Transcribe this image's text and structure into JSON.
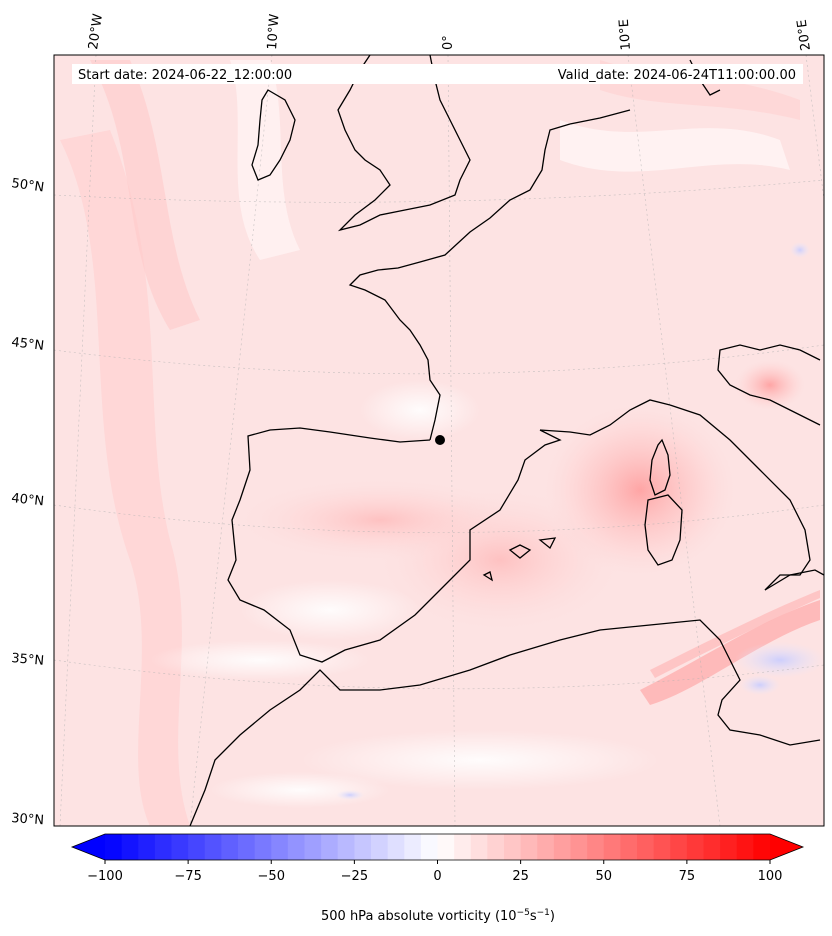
{
  "header": {
    "start_date": "Start date: 2024-06-22_12:00:00",
    "valid_date": "Valid_date: 2024-06-24T11:00:00.00"
  },
  "longitude_labels": [
    "20°W",
    "10°W",
    "0°",
    "10°E",
    "20°E"
  ],
  "latitude_labels": [
    "50°N",
    "45°N",
    "40°N",
    "35°N",
    "30°N"
  ],
  "colorbar": {
    "ticks": [
      "−100",
      "−75",
      "−50",
      "−25",
      "0",
      "25",
      "50",
      "75",
      "100"
    ],
    "tick_values": [
      -100,
      -75,
      -50,
      -25,
      0,
      25,
      50,
      75,
      100
    ],
    "range": [
      -100,
      100
    ],
    "step": 5,
    "extend": "both",
    "cmap_ends": {
      "low": "#0000ff",
      "mid": "#ffffff",
      "high": "#ff0000"
    },
    "label_prefix": "500 hPa absolute vorticity (10",
    "label_exp1": "−5",
    "label_mid": "s",
    "label_exp2": "−1",
    "label_suffix": ")"
  },
  "map": {
    "background_color": "#fde6e6",
    "coastline_color": "#000000",
    "feature_markers": [
      "vorticity maximum over Sardinia/Corsica region"
    ]
  }
}
